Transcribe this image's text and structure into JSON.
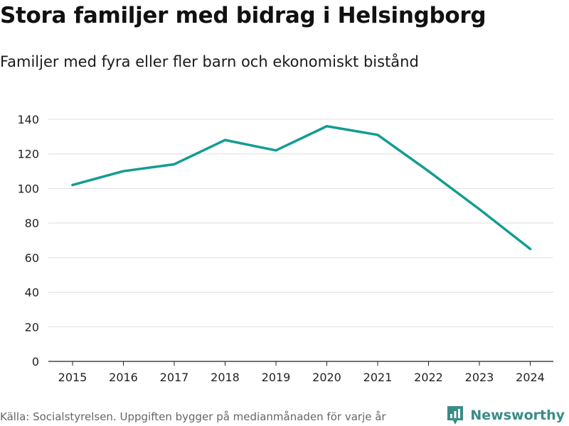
{
  "header": {
    "title": "Stora familjer med bidrag i Helsingborg",
    "subtitle": "Familjer med fyra eller fler barn och ekonomiskt bistånd"
  },
  "footer": {
    "source": "Källa: Socialstyrelsen. Uppgiften bygger på medianmånaden för varje år",
    "brand": "Newsworthy"
  },
  "colors": {
    "line": "#149c92",
    "grid": "#dddddd",
    "axis": "#222222",
    "brand": "#3a8c85"
  },
  "icons": {
    "brand_logo": "bar-chart-speech-bubble-icon"
  },
  "chart_data": {
    "type": "line",
    "title": "Stora familjer med bidrag i Helsingborg",
    "subtitle": "Familjer med fyra eller fler barn och ekonomiskt bistånd",
    "xlabel": "",
    "ylabel": "",
    "x": [
      "2015",
      "2016",
      "2017",
      "2018",
      "2019",
      "2020",
      "2021",
      "2022",
      "2023",
      "2024"
    ],
    "series": [
      {
        "name": "Familjer med fyra eller fler barn",
        "values": [
          102,
          110,
          114,
          128,
          122,
          136,
          131,
          110,
          88,
          65
        ]
      }
    ],
    "ylim": [
      0,
      140
    ],
    "yticks": [
      0,
      20,
      40,
      60,
      80,
      100,
      120,
      140
    ],
    "grid": true
  }
}
